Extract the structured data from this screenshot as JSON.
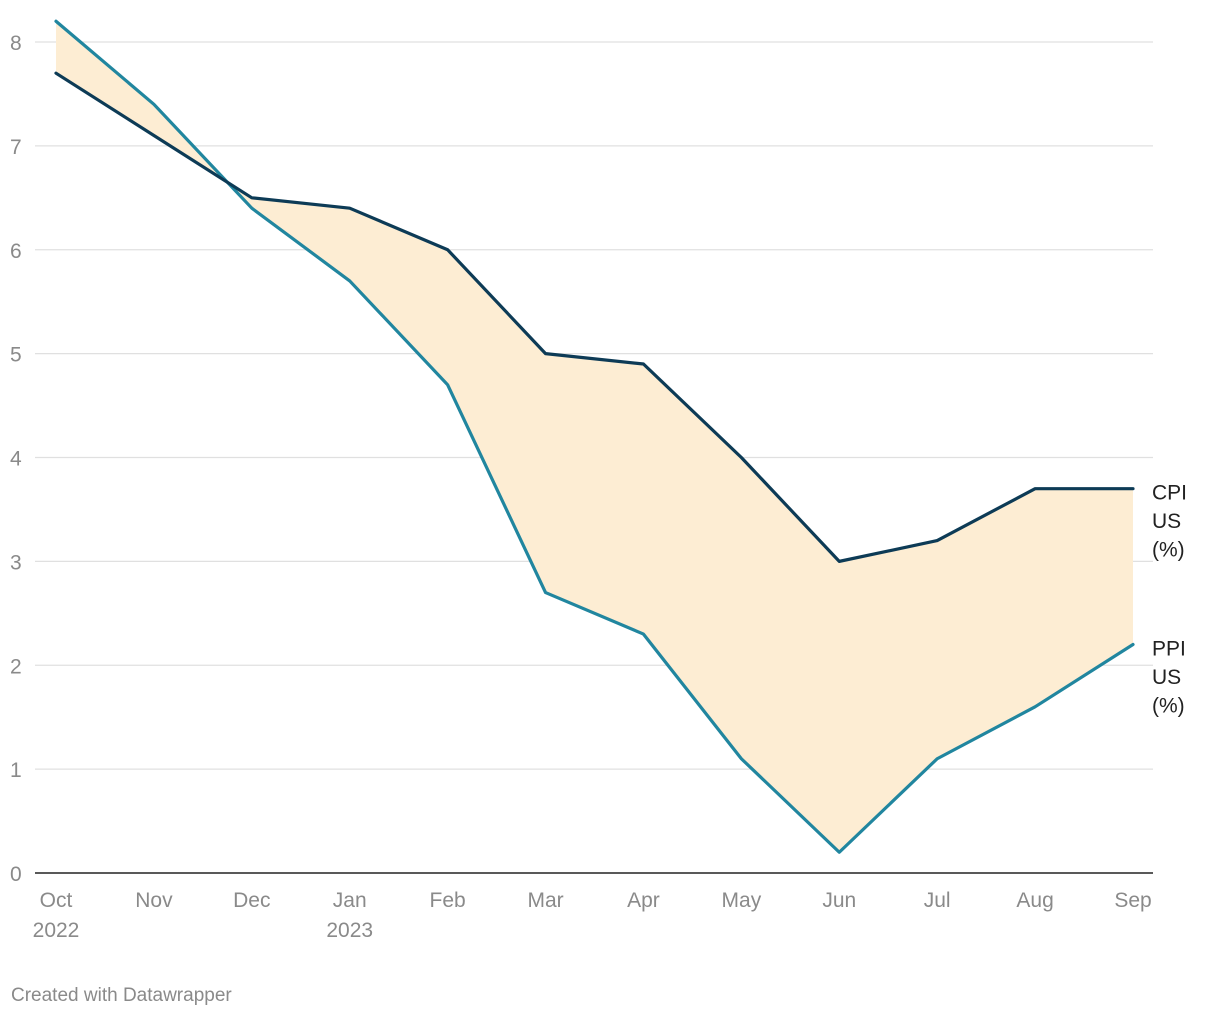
{
  "chart_data": {
    "type": "line",
    "title": "",
    "xlabel": "",
    "ylabel": "",
    "categories": [
      "Oct 2022",
      "Nov",
      "Dec",
      "Jan 2023",
      "Feb",
      "Mar",
      "Apr",
      "May",
      "Jun",
      "Jul",
      "Aug",
      "Sep"
    ],
    "x_tick_labels": [
      {
        "line1": "Oct",
        "line2": "2022"
      },
      {
        "line1": "Nov",
        "line2": ""
      },
      {
        "line1": "Dec",
        "line2": ""
      },
      {
        "line1": "Jan",
        "line2": "2023"
      },
      {
        "line1": "Feb",
        "line2": ""
      },
      {
        "line1": "Mar",
        "line2": ""
      },
      {
        "line1": "Apr",
        "line2": ""
      },
      {
        "line1": "May",
        "line2": ""
      },
      {
        "line1": "Jun",
        "line2": ""
      },
      {
        "line1": "Jul",
        "line2": ""
      },
      {
        "line1": "Aug",
        "line2": ""
      },
      {
        "line1": "Sep",
        "line2": ""
      }
    ],
    "series": [
      {
        "name": "CPI US (%)",
        "label_lines": [
          "CPI",
          "US",
          "(%)"
        ],
        "color": "#0d3b56",
        "values": [
          7.7,
          7.1,
          6.5,
          6.4,
          6.0,
          5.0,
          4.9,
          4.0,
          3.0,
          3.2,
          3.7,
          3.7
        ]
      },
      {
        "name": "PPI US (%)",
        "label_lines": [
          "PPI",
          "US",
          "(%)"
        ],
        "color": "#21869f",
        "values": [
          8.2,
          7.4,
          6.4,
          5.7,
          4.7,
          2.7,
          2.3,
          1.1,
          0.2,
          1.1,
          1.6,
          2.2
        ]
      }
    ],
    "area_between_series": true,
    "area_color": "#fdedd3",
    "ylim": [
      0,
      8
    ],
    "y_ticks": [
      "0",
      "1",
      "2",
      "3",
      "4",
      "5",
      "6",
      "7",
      "8"
    ],
    "grid": true,
    "legend": "end-of-line labels at right"
  },
  "credit": "Created with Datawrapper"
}
